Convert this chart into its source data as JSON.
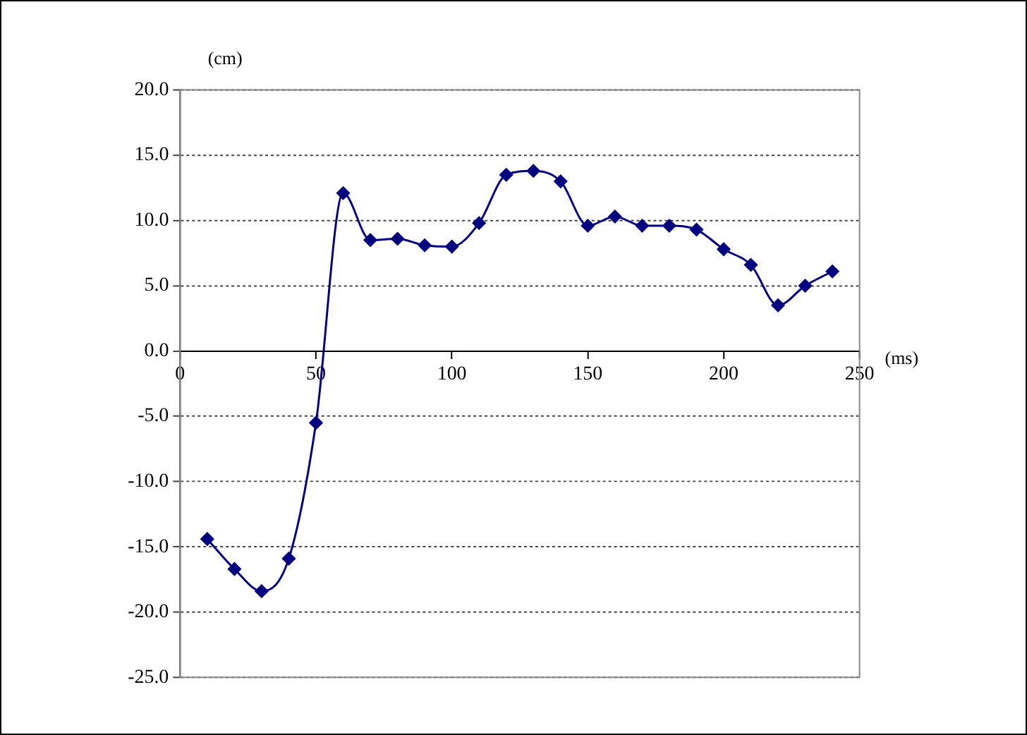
{
  "chart_data": {
    "type": "line",
    "xlabel": "(ms)",
    "ylabel": "(cm)",
    "x": [
      10,
      20,
      30,
      40,
      50,
      60,
      70,
      80,
      90,
      100,
      110,
      120,
      130,
      140,
      150,
      160,
      170,
      180,
      190,
      200,
      210,
      220,
      230,
      240
    ],
    "series": [
      {
        "color": "#000080",
        "values": [
          -14.4,
          -16.7,
          -18.4,
          -15.9,
          -5.5,
          12.1,
          8.5,
          8.6,
          8.1,
          8.0,
          9.8,
          13.5,
          13.8,
          13.0,
          9.6,
          10.3,
          9.6,
          9.6,
          9.3,
          7.8,
          6.6,
          3.5,
          5.0,
          6.1
        ]
      }
    ],
    "xlim": [
      0,
      250
    ],
    "xticks": [
      0,
      50,
      100,
      150,
      200,
      250
    ],
    "ylim": [
      -25,
      20
    ],
    "yticks": [
      {
        "value": -25,
        "label": "-25.0"
      },
      {
        "value": -20,
        "label": "-20.0"
      },
      {
        "value": -15,
        "label": "-15.0"
      },
      {
        "value": -10,
        "label": "-10.0"
      },
      {
        "value": -5,
        "label": "-5.0"
      },
      {
        "value": 0,
        "label": "0.0"
      },
      {
        "value": 5,
        "label": "5.0"
      },
      {
        "value": 10,
        "label": "10.0"
      },
      {
        "value": 15,
        "label": "15.0"
      },
      {
        "value": 20,
        "label": "20.0"
      }
    ],
    "grid": "y",
    "legend": false,
    "marker": "diamond",
    "line_style": "solid"
  }
}
